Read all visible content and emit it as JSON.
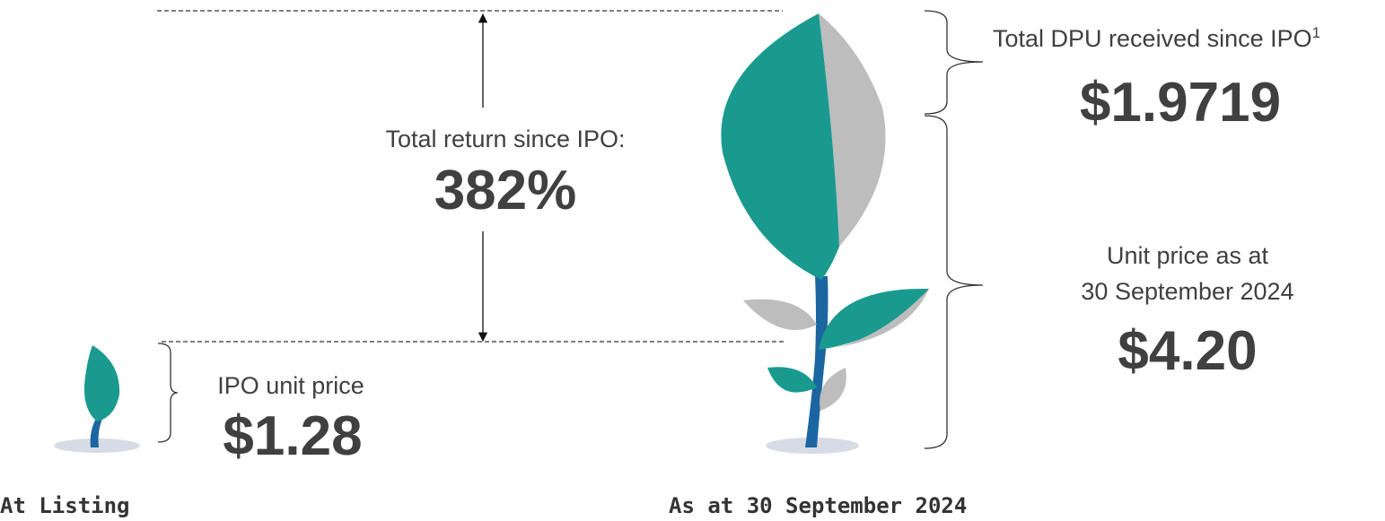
{
  "total_return": {
    "label": "Total return since IPO:",
    "value": "382%"
  },
  "at_listing": {
    "caption": "IPO unit price",
    "price": "$1.28",
    "footer": "At Listing"
  },
  "current": {
    "dpu_label": "Total DPU received since IPO",
    "dpu_note": "1",
    "dpu_value": "$1.9719",
    "price_label_line1": "Unit price as at",
    "price_label_line2": "30 September 2024",
    "price": "$4.20",
    "footer": "As at 30 September 2024"
  }
}
